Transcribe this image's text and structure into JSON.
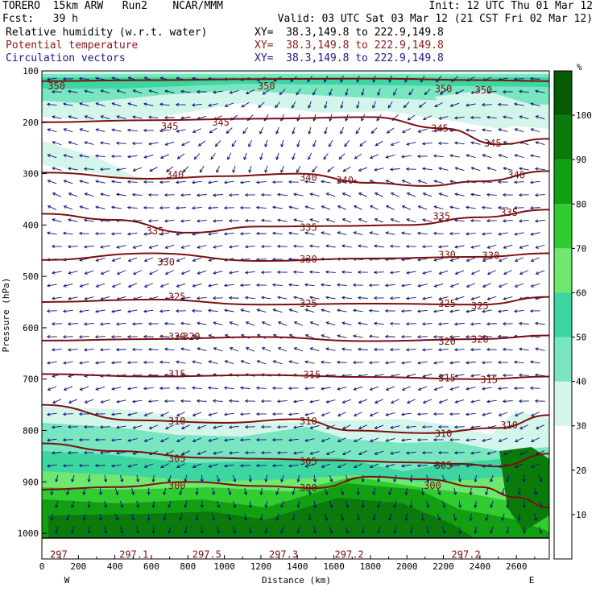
{
  "header": {
    "model": "TORERO  15km ARW   Run2    NCAR/MMM",
    "init": "Init: 12 UTC Thu 01 Mar 12",
    "fcst": "Fcst:   39 h",
    "valid": "Valid: 03 UTC Sat 03 Mar 12 (21 CST Fri 02 Mar 12)",
    "field1": "Relative humidity (w.r.t. water)",
    "field2": "Potential temperature",
    "field3": "Circulation vectors",
    "xy1": "XY=  38.3,149.8 to 222.9,149.8",
    "xy2": "XY=  38.3,149.8 to 222.9,149.8",
    "xy3": "XY=  38.3,149.8 to 222.9,149.8"
  },
  "colors": {
    "field2": "#8b1a1a",
    "field3": "#1a1a8b",
    "theta": "#7a1010",
    "vector": "#10107a"
  },
  "chart_data": {
    "type": "heatmap",
    "title": "",
    "xlabel": "Distance (km)",
    "ylabel": "Pressure (hPa)",
    "xlim": [
      0,
      2780
    ],
    "ylim": [
      1050,
      100
    ],
    "x_ticks": [
      "0",
      "200",
      "400",
      "600",
      "800",
      "1000",
      "1200",
      "1400",
      "1600",
      "1800",
      "2000",
      "2200",
      "2400",
      "2600"
    ],
    "y_ticks": [
      "100",
      "200",
      "300",
      "400",
      "500",
      "600",
      "700",
      "800",
      "900",
      "1000"
    ],
    "x_endpoints": {
      "left": "W",
      "right": "E"
    },
    "colorbar": {
      "unit": "%",
      "levels": [
        10,
        20,
        30,
        40,
        50,
        60,
        70,
        80,
        90,
        100
      ],
      "colors": [
        "#ffffff",
        "#ffffff",
        "#ffffff",
        "#d4f5ea",
        "#79e6c0",
        "#3dd6a0",
        "#6ee86e",
        "#30cc30",
        "#12a012",
        "#0a7a0a",
        "#055c05"
      ]
    },
    "theta_contours": [
      {
        "value": 350,
        "points": [
          [
            0,
            120
          ],
          [
            600,
            118
          ],
          [
            1200,
            116
          ],
          [
            1800,
            115
          ],
          [
            2400,
            118
          ],
          [
            2780,
            120
          ]
        ],
        "labels": [
          [
            "350",
            80,
            130
          ],
          [
            "350",
            1230,
            130
          ],
          [
            "350",
            2200,
            135
          ],
          [
            "350",
            2420,
            138
          ]
        ]
      },
      {
        "value": 345,
        "points": [
          [
            0,
            200
          ],
          [
            600,
            196
          ],
          [
            1200,
            193
          ],
          [
            1800,
            190
          ],
          [
            2200,
            212
          ],
          [
            2500,
            243
          ],
          [
            2780,
            232
          ]
        ],
        "labels": [
          [
            "345",
            700,
            208
          ],
          [
            "345",
            980,
            200
          ],
          [
            "345",
            2180,
            212
          ],
          [
            "345",
            2470,
            241
          ]
        ]
      },
      {
        "value": 340,
        "points": [
          [
            0,
            298
          ],
          [
            600,
            310
          ],
          [
            1000,
            305
          ],
          [
            1400,
            300
          ],
          [
            1800,
            318
          ],
          [
            2100,
            324
          ],
          [
            2400,
            315
          ],
          [
            2780,
            295
          ]
        ],
        "labels": [
          [
            "340",
            730,
            302
          ],
          [
            "340",
            1460,
            308
          ],
          [
            "340",
            1660,
            313
          ],
          [
            "340",
            2600,
            303
          ]
        ]
      },
      {
        "value": 335,
        "points": [
          [
            0,
            378
          ],
          [
            400,
            390
          ],
          [
            800,
            415
          ],
          [
            1200,
            403
          ],
          [
            1600,
            402
          ],
          [
            2000,
            400
          ],
          [
            2400,
            385
          ],
          [
            2780,
            370
          ]
        ],
        "labels": [
          [
            "335",
            620,
            412
          ],
          [
            "335",
            1460,
            405
          ],
          [
            "335",
            2190,
            383
          ],
          [
            "335",
            2560,
            376
          ]
        ]
      },
      {
        "value": 330,
        "points": [
          [
            0,
            468
          ],
          [
            600,
            455
          ],
          [
            1200,
            470
          ],
          [
            1800,
            465
          ],
          [
            2400,
            462
          ],
          [
            2780,
            455
          ]
        ],
        "labels": [
          [
            "330",
            680,
            472
          ],
          [
            "330",
            1460,
            467
          ],
          [
            "330",
            2220,
            458
          ],
          [
            "330",
            2460,
            460
          ]
        ]
      },
      {
        "value": 325,
        "points": [
          [
            0,
            550
          ],
          [
            600,
            545
          ],
          [
            1200,
            555
          ],
          [
            1800,
            553
          ],
          [
            2400,
            555
          ],
          [
            2780,
            540
          ]
        ],
        "labels": [
          [
            "325",
            740,
            540
          ],
          [
            "325",
            1460,
            553
          ],
          [
            "325",
            2220,
            553
          ],
          [
            "325",
            2400,
            558
          ]
        ]
      },
      {
        "value": 320,
        "points": [
          [
            0,
            625
          ],
          [
            600,
            622
          ],
          [
            1200,
            618
          ],
          [
            1800,
            626
          ],
          [
            2400,
            622
          ],
          [
            2780,
            615
          ]
        ],
        "labels": [
          [
            "320",
            740,
            617
          ],
          [
            "320",
            820,
            617
          ],
          [
            "320",
            2220,
            627
          ],
          [
            "320",
            2400,
            623
          ]
        ]
      },
      {
        "value": 315,
        "points": [
          [
            0,
            690
          ],
          [
            600,
            695
          ],
          [
            1200,
            692
          ],
          [
            1800,
            696
          ],
          [
            2400,
            700
          ],
          [
            2780,
            695
          ]
        ],
        "labels": [
          [
            "315",
            740,
            690
          ],
          [
            "315",
            1480,
            692
          ],
          [
            "315",
            2220,
            698
          ],
          [
            "315",
            2450,
            701
          ]
        ]
      },
      {
        "value": 310,
        "points": [
          [
            0,
            750
          ],
          [
            500,
            780
          ],
          [
            1000,
            785
          ],
          [
            1400,
            778
          ],
          [
            1700,
            800
          ],
          [
            2100,
            805
          ],
          [
            2500,
            795
          ],
          [
            2780,
            770
          ]
        ],
        "labels": [
          [
            "310",
            740,
            782
          ],
          [
            "310",
            1460,
            782
          ],
          [
            "310",
            2200,
            806
          ],
          [
            "310",
            2560,
            790
          ]
        ]
      },
      {
        "value": 305,
        "points": [
          [
            0,
            825
          ],
          [
            400,
            840
          ],
          [
            900,
            853
          ],
          [
            1200,
            855
          ],
          [
            1600,
            858
          ],
          [
            2000,
            862
          ],
          [
            2300,
            865
          ],
          [
            2500,
            870
          ],
          [
            2780,
            845
          ]
        ],
        "labels": [
          [
            "305",
            740,
            855
          ],
          [
            "305",
            1460,
            860
          ],
          [
            "305",
            2200,
            868
          ]
        ]
      },
      {
        "value": 300,
        "points": [
          [
            0,
            915
          ],
          [
            400,
            910
          ],
          [
            800,
            900
          ],
          [
            1200,
            908
          ],
          [
            1500,
            912
          ],
          [
            1800,
            890
          ],
          [
            2100,
            895
          ],
          [
            2400,
            910
          ],
          [
            2600,
            930
          ],
          [
            2780,
            950
          ]
        ],
        "labels": [
          [
            "300",
            740,
            907
          ],
          [
            "300",
            1460,
            912
          ],
          [
            "300",
            2140,
            907
          ]
        ]
      }
    ],
    "surface_labels": [
      [
        "297",
        0,
        1035
      ],
      [
        "297.1",
        380,
        1035
      ],
      [
        "297.5",
        780,
        1035
      ],
      [
        "297.3",
        1200,
        1035
      ],
      [
        "297.2",
        1560,
        1035
      ],
      [
        "297.2",
        2200,
        1035
      ]
    ]
  }
}
